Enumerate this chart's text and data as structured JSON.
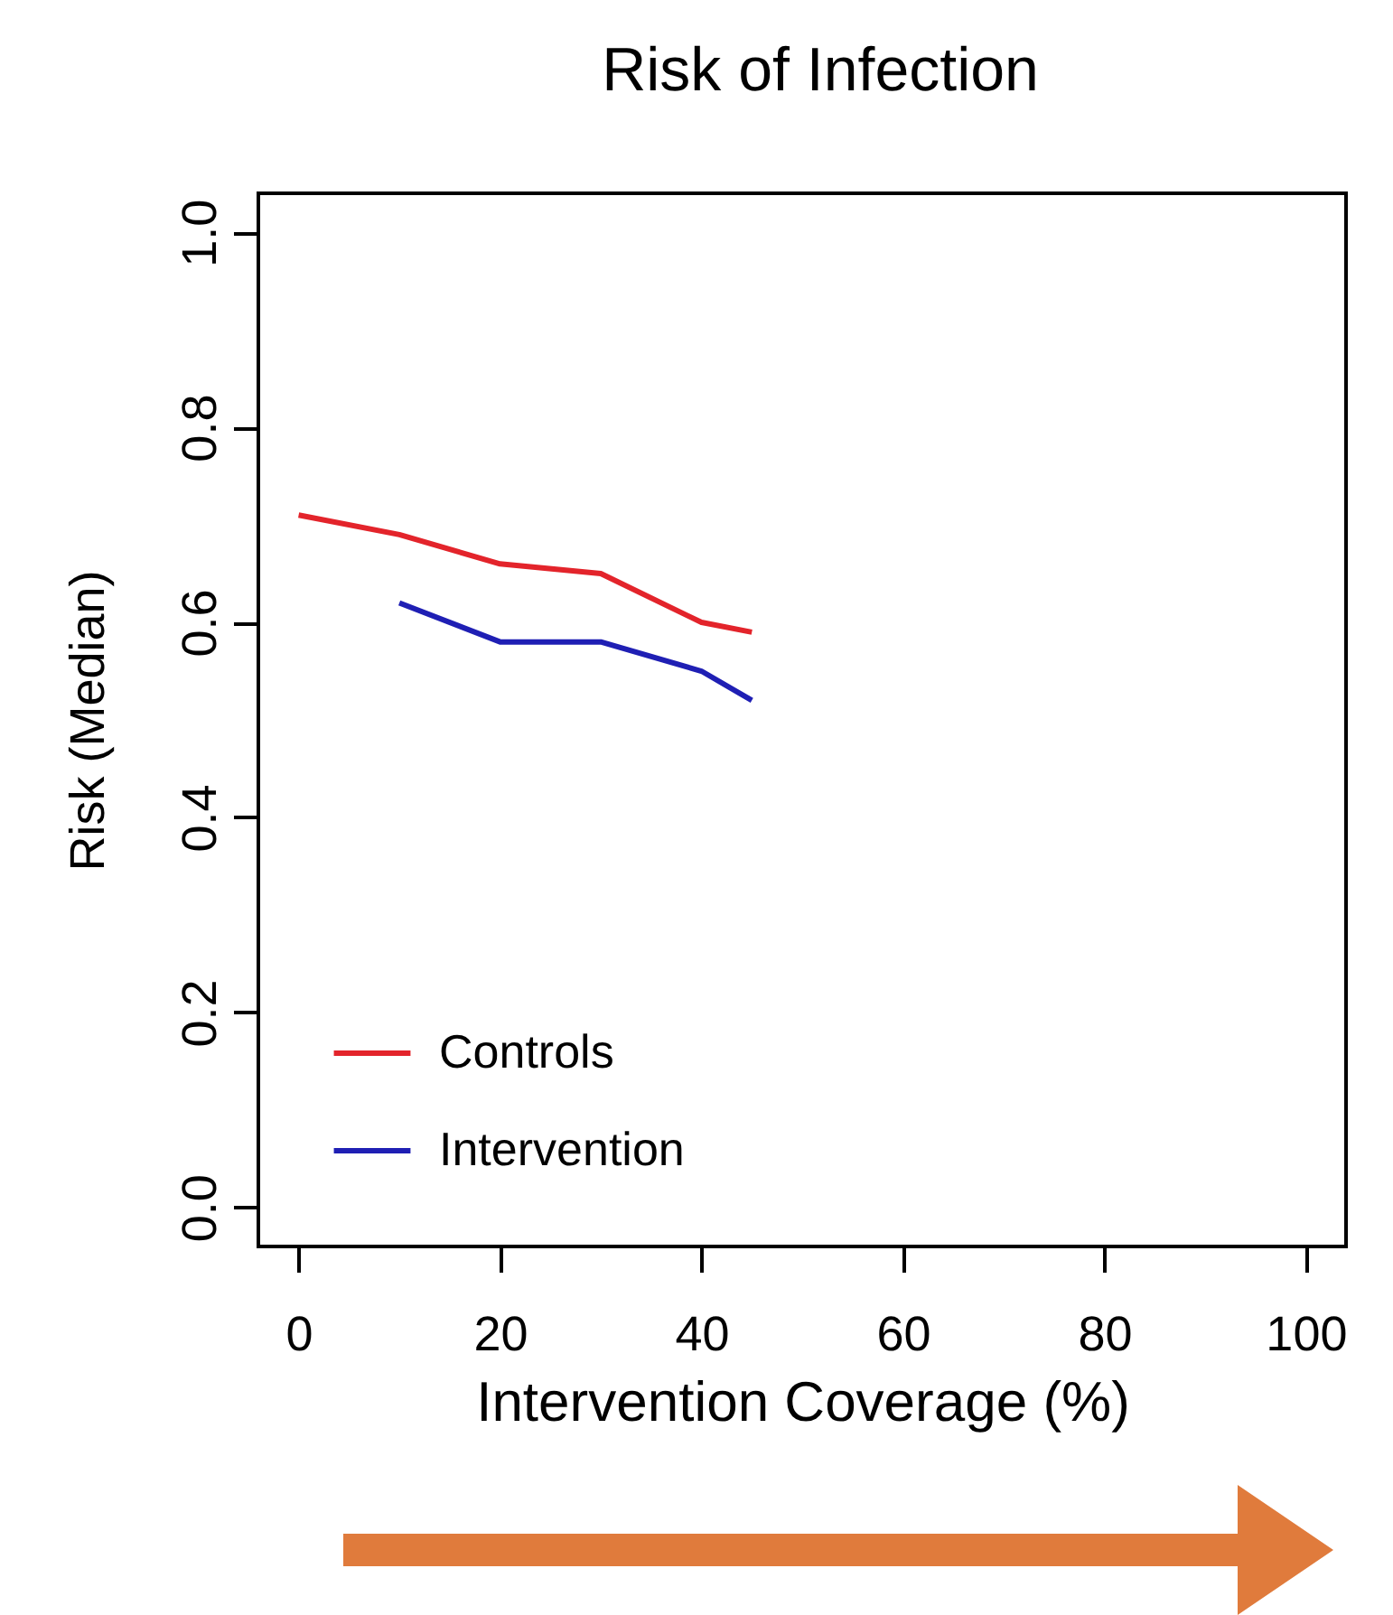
{
  "chart_data": {
    "type": "line",
    "title": "Risk of Infection",
    "xlabel": "Intervention Coverage (%)",
    "ylabel": "Risk (Median)",
    "xlim": [
      -4,
      104
    ],
    "xticks": [
      0,
      20,
      40,
      60,
      80,
      100
    ],
    "ylim": [
      -0.04,
      1.04
    ],
    "yticks": [
      {
        "value": 0,
        "label": "0.0"
      },
      0.2,
      0.4,
      0.6,
      0.8,
      {
        "value": 1,
        "label": "1.0"
      }
    ],
    "legend": "bottom left",
    "grid": false,
    "series": [
      {
        "name": "Controls",
        "color": "#e3242b",
        "x": [
          0,
          10,
          20,
          30,
          40,
          45
        ],
        "values": [
          0.71,
          0.69,
          0.66,
          0.65,
          0.6,
          0.59
        ]
      },
      {
        "name": "Intervention",
        "color": "#1f1fb4",
        "x": [
          10,
          20,
          30,
          40,
          45
        ],
        "values": [
          0.62,
          0.58,
          0.58,
          0.55,
          0.52
        ]
      }
    ]
  }
}
